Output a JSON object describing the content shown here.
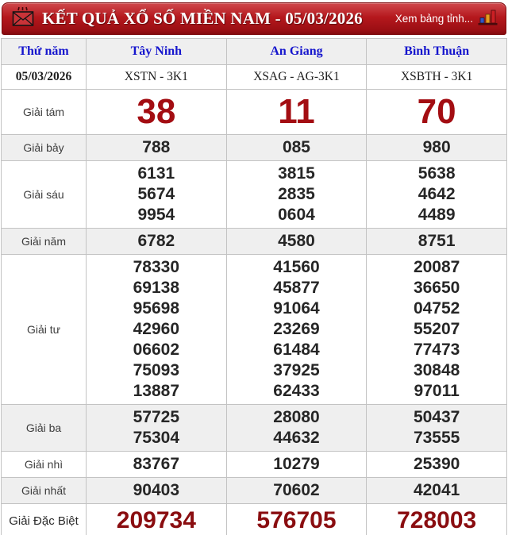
{
  "header": {
    "title": "KẾT QUẢ XỔ SỐ MIỀN NAM - 05/03/2026",
    "link_label": "Xem bảng tỉnh...",
    "left_icon": "envelope-icon",
    "right_icon": "bar-chart-icon"
  },
  "table": {
    "columns": [
      "Thứ năm",
      "Tây Ninh",
      "An Giang",
      "Bình Thuận"
    ],
    "date_row": [
      "05/03/2026",
      "XSTN - 3K1",
      "XSAG - AG-3K1",
      "XSBTH - 3K1"
    ],
    "rows": [
      {
        "label": "Giải tám",
        "style": "big-red",
        "values": [
          [
            "38"
          ],
          [
            "11"
          ],
          [
            "70"
          ]
        ]
      },
      {
        "label": "Giải bảy",
        "values": [
          [
            "788"
          ],
          [
            "085"
          ],
          [
            "980"
          ]
        ]
      },
      {
        "label": "Giải sáu",
        "values": [
          [
            "6131",
            "5674",
            "9954"
          ],
          [
            "3815",
            "2835",
            "0604"
          ],
          [
            "5638",
            "4642",
            "4489"
          ]
        ]
      },
      {
        "label": "Giải năm",
        "values": [
          [
            "6782"
          ],
          [
            "4580"
          ],
          [
            "8751"
          ]
        ]
      },
      {
        "label": "Giải tư",
        "values": [
          [
            "78330",
            "69138",
            "95698",
            "42960",
            "06602",
            "75093",
            "13887"
          ],
          [
            "41560",
            "45877",
            "91064",
            "23269",
            "61484",
            "37925",
            "62433"
          ],
          [
            "20087",
            "36650",
            "04752",
            "55207",
            "77473",
            "30848",
            "97011"
          ]
        ]
      },
      {
        "label": "Giải ba",
        "values": [
          [
            "57725",
            "75304"
          ],
          [
            "28080",
            "44632"
          ],
          [
            "50437",
            "73555"
          ]
        ]
      },
      {
        "label": "Giải nhì",
        "values": [
          [
            "83767"
          ],
          [
            "10279"
          ],
          [
            "25390"
          ]
        ]
      },
      {
        "label": "Giải nhất",
        "values": [
          [
            "90403"
          ],
          [
            "70602"
          ],
          [
            "42041"
          ]
        ]
      },
      {
        "label": "Giải Đặc Biệt",
        "style": "special",
        "values": [
          [
            "209734"
          ],
          [
            "576705"
          ],
          [
            "728003"
          ]
        ]
      }
    ]
  },
  "colors": {
    "header_red": "#b5181d",
    "big_number_red": "#a30d12",
    "special_number_red": "#8a0d10",
    "link_blue": "#1515cd",
    "stripe_gray": "#efefef",
    "bottom_strip_cream": "#f8f2d8"
  }
}
